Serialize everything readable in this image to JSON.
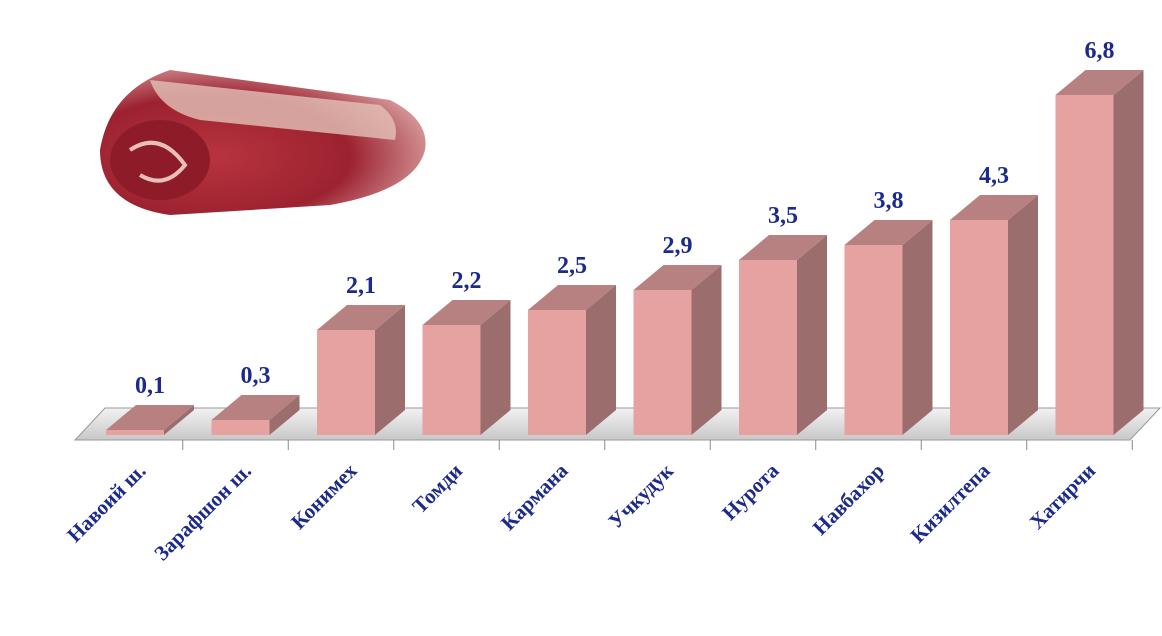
{
  "chart_data": {
    "type": "bar3d",
    "categories": [
      "Навоий ш.",
      "Зарафшон ш.",
      "Конимех",
      "Томди",
      "Кармана",
      "Учкудук",
      "Нурота",
      "Навбахор",
      "Кизилтепа",
      "Хатирчи"
    ],
    "values": [
      0.1,
      0.3,
      2.1,
      2.2,
      2.5,
      2.9,
      3.5,
      3.8,
      4.3,
      6.8
    ],
    "value_labels": [
      "0,1",
      "0,3",
      "2,1",
      "2,2",
      "2,5",
      "2,9",
      "3,5",
      "3,8",
      "4,3",
      "6,8"
    ],
    "color": "#e6a1a1"
  }
}
